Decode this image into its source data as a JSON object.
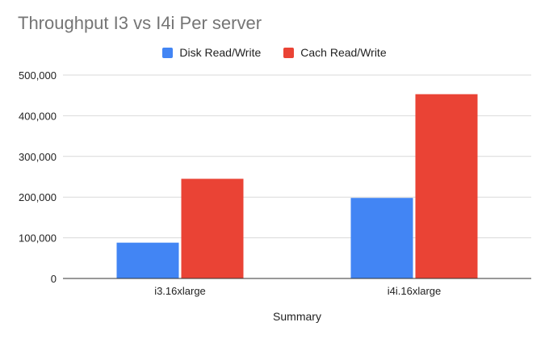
{
  "chart_data": {
    "type": "bar",
    "title": "Throughput I3 vs I4i Per server",
    "xlabel": "Summary",
    "ylabel": "",
    "categories": [
      "i3.16xlarge",
      "i4i.16xlarge"
    ],
    "series": [
      {
        "name": "Disk Read/Write",
        "color": "#4285f4",
        "values": [
          88000,
          198000
        ]
      },
      {
        "name": "Cach Read/Write",
        "color": "#ea4335",
        "values": [
          245000,
          453000
        ]
      }
    ],
    "ylim": [
      0,
      500000
    ],
    "yticks": [
      "0",
      "100,000",
      "200,000",
      "300,000",
      "400,000",
      "500,000"
    ],
    "ytick_values": [
      0,
      100000,
      200000,
      300000,
      400000,
      500000
    ],
    "grid": true,
    "legend_position": "top-center"
  }
}
